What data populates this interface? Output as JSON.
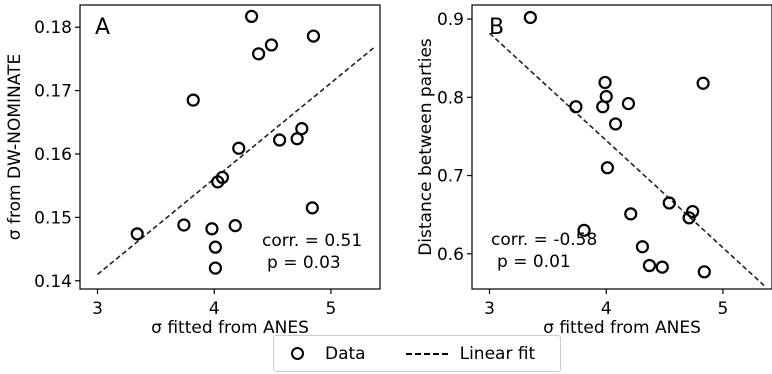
{
  "chart_data": [
    {
      "type": "scatter",
      "panel_letter": "A",
      "xlabel": "σ fitted from ANES",
      "ylabel": "σ from DW-NOMINATE",
      "xlim": [
        2.85,
        5.42
      ],
      "ylim": [
        0.1387,
        0.1835
      ],
      "xticks": [
        3,
        4,
        5
      ],
      "yticks": [
        0.14,
        0.15,
        0.16,
        0.17,
        0.18
      ],
      "ytick_labels": [
        "0.14",
        "0.15",
        "0.16",
        "0.17",
        "0.18"
      ],
      "series": [
        {
          "name": "Data",
          "marker": "open-circle",
          "points": [
            [
              3.34,
              0.1474
            ],
            [
              3.74,
              0.1488
            ],
            [
              3.82,
              0.1685
            ],
            [
              3.98,
              0.1482
            ],
            [
              4.01,
              0.1453
            ],
            [
              4.01,
              0.142
            ],
            [
              4.03,
              0.1556
            ],
            [
              4.07,
              0.1563
            ],
            [
              4.18,
              0.1487
            ],
            [
              4.21,
              0.1609
            ],
            [
              4.32,
              0.1817
            ],
            [
              4.38,
              0.1758
            ],
            [
              4.49,
              0.1772
            ],
            [
              4.56,
              0.1622
            ],
            [
              4.71,
              0.1624
            ],
            [
              4.75,
              0.164
            ],
            [
              4.84,
              0.1515
            ],
            [
              4.85,
              0.1786
            ]
          ]
        },
        {
          "name": "Linear fit",
          "style": "dashed",
          "points": [
            [
              3.0,
              0.141
            ],
            [
              5.37,
              0.1768
            ]
          ]
        }
      ],
      "annotations": [
        "corr. = 0.51",
        "p = 0.03"
      ]
    },
    {
      "type": "scatter",
      "panel_letter": "B",
      "xlabel": "σ fitted from ANES",
      "ylabel": "Distance between parties",
      "xlim": [
        2.85,
        5.42
      ],
      "ylim": [
        0.555,
        0.918
      ],
      "xticks": [
        3,
        4,
        5
      ],
      "yticks": [
        0.6,
        0.7,
        0.8,
        0.9
      ],
      "ytick_labels": [
        "0.6",
        "0.7",
        "0.8",
        "0.9"
      ],
      "series": [
        {
          "name": "Data",
          "marker": "open-circle",
          "points": [
            [
              3.35,
              0.902
            ],
            [
              3.74,
              0.788
            ],
            [
              3.81,
              0.63
            ],
            [
              3.97,
              0.788
            ],
            [
              3.99,
              0.819
            ],
            [
              4.0,
              0.801
            ],
            [
              4.01,
              0.71
            ],
            [
              4.08,
              0.766
            ],
            [
              4.19,
              0.792
            ],
            [
              4.21,
              0.651
            ],
            [
              4.31,
              0.609
            ],
            [
              4.37,
              0.585
            ],
            [
              4.48,
              0.583
            ],
            [
              4.54,
              0.665
            ],
            [
              4.71,
              0.646
            ],
            [
              4.74,
              0.654
            ],
            [
              4.83,
              0.818
            ],
            [
              4.84,
              0.577
            ]
          ]
        },
        {
          "name": "Linear fit",
          "style": "dashed",
          "points": [
            [
              3.0,
              0.882
            ],
            [
              5.37,
              0.557
            ]
          ]
        }
      ],
      "annotations": [
        "corr. = -0.58",
        "p = 0.01"
      ]
    }
  ],
  "legend": {
    "items": [
      "Data",
      "Linear fit"
    ],
    "placement": "bottom-center"
  }
}
